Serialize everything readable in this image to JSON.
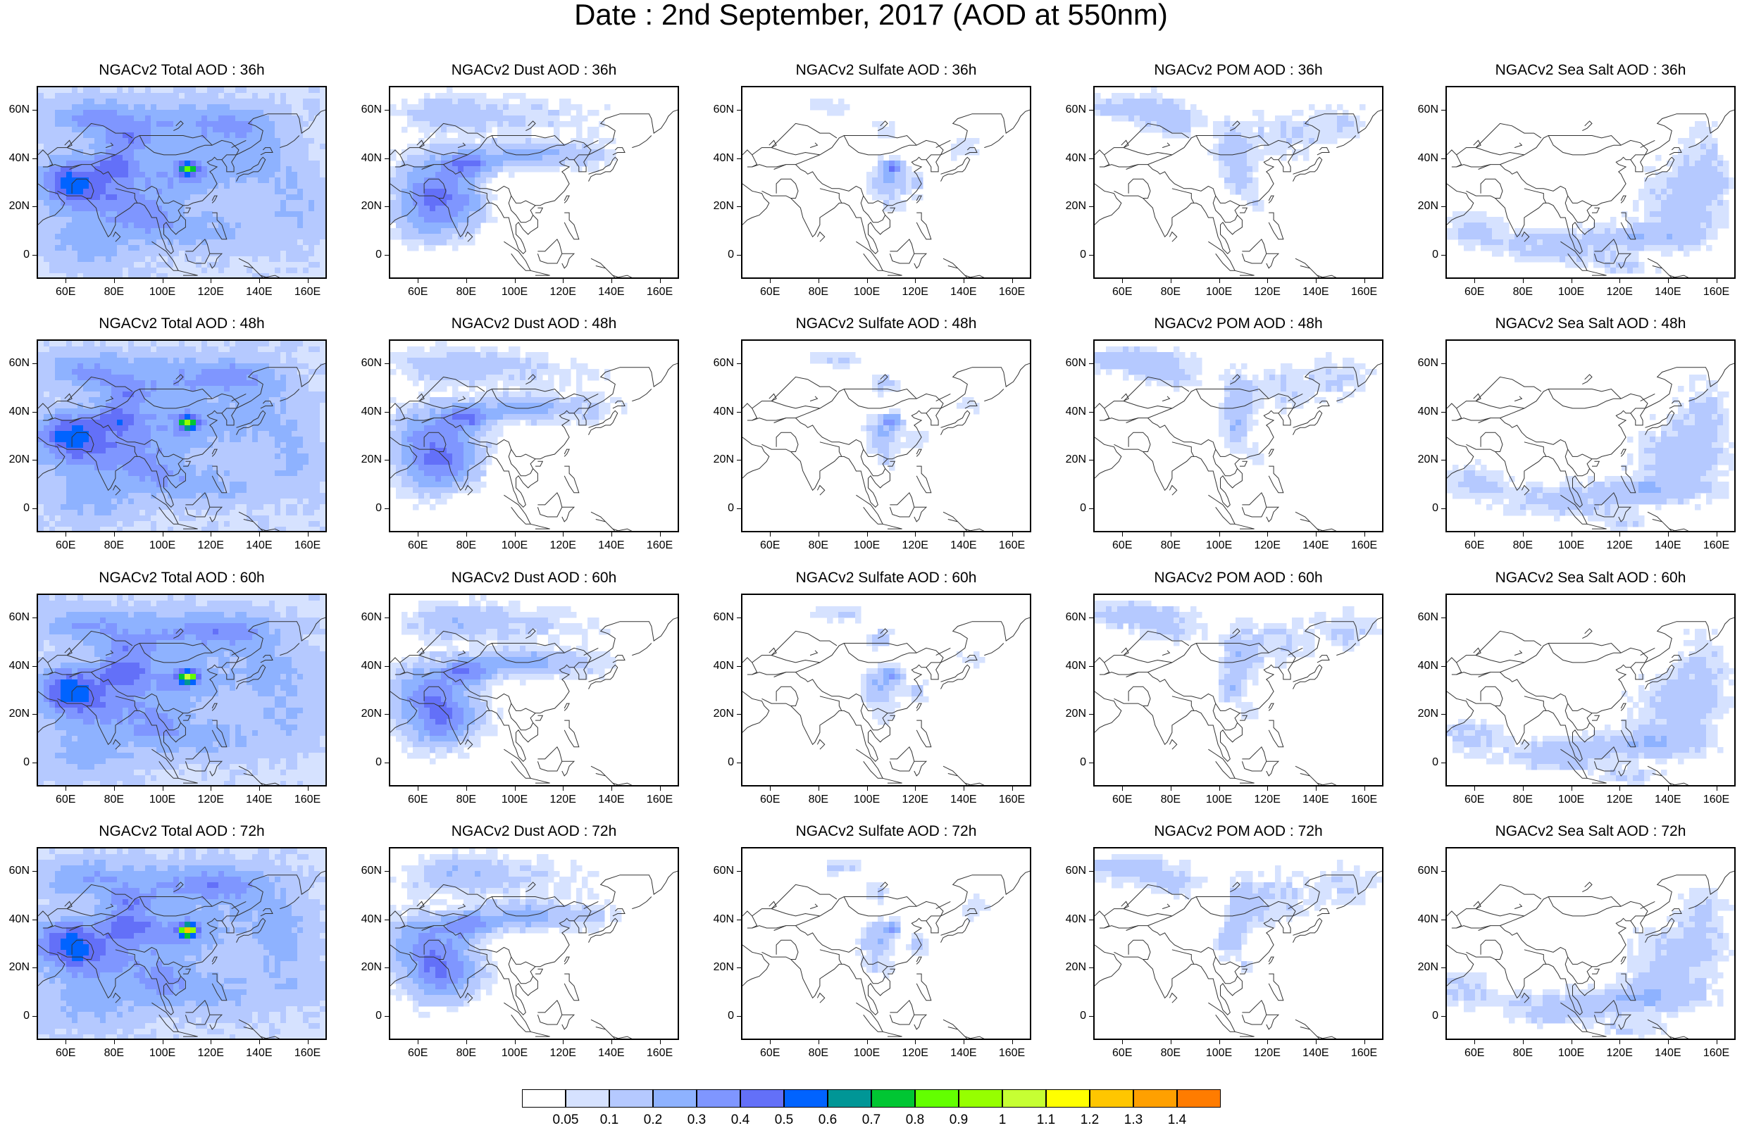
{
  "title": "Date : 2nd September, 2017 (AOD at 550nm)",
  "colors": {
    "land_outline": "#333333",
    "frame": "#000000"
  },
  "axes": {
    "lat_labels": [
      "60N",
      "40N",
      "20N",
      "0"
    ],
    "lat_values": [
      60,
      40,
      20,
      0
    ],
    "lat_range": [
      -10,
      70
    ],
    "lon_labels": [
      "60E",
      "80E",
      "100E",
      "120E",
      "140E",
      "160E"
    ],
    "lon_values": [
      60,
      80,
      100,
      120,
      140,
      160
    ],
    "lon_range": [
      48,
      168
    ]
  },
  "panels": [
    [
      {
        "title": "NGACv2 Total AOD : 36h",
        "species": "total",
        "lead": 36
      },
      {
        "title": "NGACv2 Dust AOD : 36h",
        "species": "dust",
        "lead": 36
      },
      {
        "title": "NGACv2 Sulfate AOD : 36h",
        "species": "sulfate",
        "lead": 36
      },
      {
        "title": "NGACv2 POM AOD : 36h",
        "species": "pom",
        "lead": 36
      },
      {
        "title": "NGACv2 Sea Salt AOD : 36h",
        "species": "seasalt",
        "lead": 36
      }
    ],
    [
      {
        "title": "NGACv2 Total AOD : 48h",
        "species": "total",
        "lead": 48
      },
      {
        "title": "NGACv2 Dust AOD : 48h",
        "species": "dust",
        "lead": 48
      },
      {
        "title": "NGACv2 Sulfate AOD : 48h",
        "species": "sulfate",
        "lead": 48
      },
      {
        "title": "NGACv2 POM AOD : 48h",
        "species": "pom",
        "lead": 48
      },
      {
        "title": "NGACv2 Sea Salt AOD : 48h",
        "species": "seasalt",
        "lead": 48
      }
    ],
    [
      {
        "title": "NGACv2 Total AOD : 60h",
        "species": "total",
        "lead": 60
      },
      {
        "title": "NGACv2 Dust AOD : 60h",
        "species": "dust",
        "lead": 60
      },
      {
        "title": "NGACv2 Sulfate AOD : 60h",
        "species": "sulfate",
        "lead": 60
      },
      {
        "title": "NGACv2 POM AOD : 60h",
        "species": "pom",
        "lead": 60
      },
      {
        "title": "NGACv2 Sea Salt AOD : 60h",
        "species": "seasalt",
        "lead": 60
      }
    ],
    [
      {
        "title": "NGACv2 Total AOD : 72h",
        "species": "total",
        "lead": 72
      },
      {
        "title": "NGACv2 Dust AOD : 72h",
        "species": "dust",
        "lead": 72
      },
      {
        "title": "NGACv2 Sulfate AOD : 72h",
        "species": "sulfate",
        "lead": 72
      },
      {
        "title": "NGACv2 POM AOD : 72h",
        "species": "pom",
        "lead": 72
      },
      {
        "title": "NGACv2 Sea Salt  AOD : 72h",
        "species": "seasalt",
        "lead": 72
      }
    ]
  ],
  "colorbar": {
    "labels": [
      "0.05",
      "0.1",
      "0.2",
      "0.3",
      "0.4",
      "0.5",
      "0.6",
      "0.7",
      "0.8",
      "0.9",
      "1",
      "1.1",
      "1.2",
      "1.3",
      "1.4"
    ],
    "colors": [
      "#ffffff",
      "#d6e2ff",
      "#b5c9ff",
      "#8eb2ff",
      "#7f96ff",
      "#6370f8",
      "#0063ff",
      "#009696",
      "#00c633",
      "#63ff00",
      "#96ff00",
      "#c6ff33",
      "#ffff00",
      "#ffc600",
      "#ffa000",
      "#ff7c00",
      "#ff1900"
    ]
  }
}
